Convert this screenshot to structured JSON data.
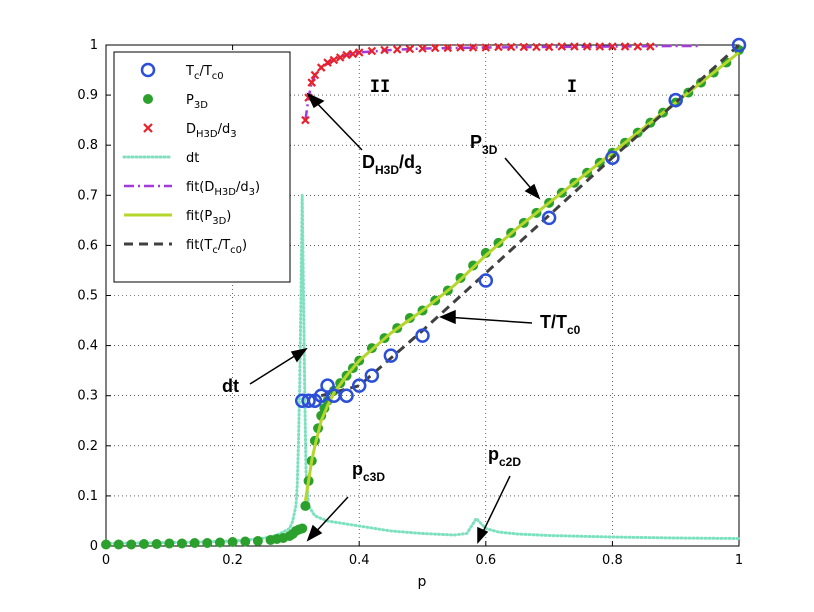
{
  "chart_data": {
    "type": "scatter",
    "xlabel": "p",
    "ylabel": "",
    "xlim": [
      0,
      1
    ],
    "ylim": [
      0,
      1
    ],
    "grid": true,
    "legend_position": "top-left",
    "x_ticks": [
      "0",
      "0.2",
      "0.4",
      "0.6",
      "0.8",
      "1"
    ],
    "y_ticks": [
      "0",
      "0.1",
      "0.2",
      "0.3",
      "0.4",
      "0.5",
      "0.6",
      "0.7",
      "0.8",
      "0.9",
      "1"
    ],
    "legend": [
      {
        "main": "T",
        "sub": "c",
        "main2": "/T",
        "sub2": "c0"
      },
      {
        "main": "P",
        "sub": "3D",
        "main2": "",
        "sub2": ""
      },
      {
        "main": "D",
        "sub": "H3D",
        "main2": "/d",
        "sub2": "3"
      },
      {
        "main": "dt",
        "sub": "",
        "main2": "",
        "sub2": ""
      },
      {
        "main": "fit(D",
        "sub": "H3D",
        "main2": "/d",
        "sub2": "3",
        "tail": ")"
      },
      {
        "main": "fit(P",
        "sub": "3D",
        "main2": ")",
        "sub2": ""
      },
      {
        "main": "fit(T",
        "sub": "c",
        "main2": "/T",
        "sub2": "c0",
        "tail": ")"
      }
    ],
    "annotations": {
      "region_II": "II",
      "region_I": "I",
      "dhd": {
        "main": "D",
        "sub": "H3D",
        "main2": "/d",
        "sub2": "3"
      },
      "p3d": {
        "main": "P",
        "sub": "3D"
      },
      "ttc": {
        "main": "T/T",
        "sub": "c0"
      },
      "dt": {
        "main": "dt"
      },
      "pc3d": {
        "main": "p",
        "sub": "c3D"
      },
      "pc2d": {
        "main": "p",
        "sub": "c2D"
      }
    },
    "colors": {
      "tc": "#2b4fd6",
      "p3d": "#2ca02c",
      "dhd": "#e8212b",
      "dt": "#7fe0c0",
      "fit_dhd": "#a23bd9",
      "fit_p3d": "#b5d62b",
      "fit_tc": "#404040"
    },
    "series": [
      {
        "name": "T_c/T_c0",
        "marker": "circle",
        "x": [
          0.31,
          0.32,
          0.33,
          0.34,
          0.35,
          0.36,
          0.38,
          0.4,
          0.42,
          0.45,
          0.5,
          0.6,
          0.7,
          0.8,
          0.9,
          1.0
        ],
        "y": [
          0.29,
          0.29,
          0.29,
          0.3,
          0.32,
          0.3,
          0.3,
          0.32,
          0.34,
          0.38,
          0.42,
          0.53,
          0.655,
          0.775,
          0.89,
          1.0
        ]
      },
      {
        "name": "P_3D",
        "marker": "dot",
        "x": [
          0.0,
          0.02,
          0.04,
          0.06,
          0.08,
          0.1,
          0.12,
          0.14,
          0.16,
          0.18,
          0.2,
          0.22,
          0.24,
          0.26,
          0.27,
          0.28,
          0.29,
          0.295,
          0.3,
          0.305,
          0.31,
          0.315,
          0.32,
          0.325,
          0.33,
          0.335,
          0.34,
          0.345,
          0.35,
          0.36,
          0.37,
          0.38,
          0.39,
          0.4,
          0.42,
          0.44,
          0.46,
          0.48,
          0.5,
          0.52,
          0.54,
          0.56,
          0.58,
          0.6,
          0.62,
          0.64,
          0.66,
          0.68,
          0.7,
          0.72,
          0.74,
          0.76,
          0.78,
          0.8,
          0.82,
          0.84,
          0.86,
          0.88,
          0.9,
          0.92,
          0.94,
          0.96,
          0.98,
          1.0
        ],
        "y": [
          0.003,
          0.003,
          0.003,
          0.004,
          0.004,
          0.005,
          0.005,
          0.006,
          0.006,
          0.007,
          0.008,
          0.009,
          0.01,
          0.012,
          0.014,
          0.016,
          0.02,
          0.024,
          0.03,
          0.033,
          0.035,
          0.08,
          0.13,
          0.17,
          0.21,
          0.235,
          0.26,
          0.275,
          0.29,
          0.31,
          0.325,
          0.34,
          0.355,
          0.37,
          0.395,
          0.415,
          0.435,
          0.455,
          0.47,
          0.49,
          0.51,
          0.535,
          0.56,
          0.585,
          0.605,
          0.625,
          0.645,
          0.665,
          0.685,
          0.705,
          0.725,
          0.745,
          0.765,
          0.785,
          0.805,
          0.825,
          0.845,
          0.865,
          0.885,
          0.905,
          0.925,
          0.945,
          0.965,
          0.99
        ]
      },
      {
        "name": "D_H3D/d_3",
        "marker": "cross",
        "x": [
          0.315,
          0.32,
          0.325,
          0.33,
          0.34,
          0.35,
          0.36,
          0.37,
          0.38,
          0.39,
          0.4,
          0.42,
          0.44,
          0.46,
          0.48,
          0.5,
          0.52,
          0.54,
          0.56,
          0.58,
          0.6,
          0.62,
          0.64,
          0.66,
          0.68,
          0.7,
          0.72,
          0.74,
          0.76,
          0.78,
          0.8,
          0.82,
          0.84,
          0.86
        ],
        "y": [
          0.85,
          0.895,
          0.925,
          0.94,
          0.955,
          0.965,
          0.97,
          0.975,
          0.98,
          0.982,
          0.985,
          0.988,
          0.99,
          0.991,
          0.992,
          0.993,
          0.994,
          0.994,
          0.995,
          0.995,
          0.995,
          0.996,
          0.996,
          0.996,
          0.996,
          0.996,
          0.997,
          0.997,
          0.997,
          0.997,
          0.997,
          0.997,
          0.997,
          0.997
        ]
      },
      {
        "name": "dt",
        "marker": "dotted-line",
        "x": [
          0.0,
          0.05,
          0.1,
          0.15,
          0.2,
          0.24,
          0.26,
          0.27,
          0.28,
          0.29,
          0.295,
          0.3,
          0.302,
          0.304,
          0.306,
          0.308,
          0.31,
          0.312,
          0.314,
          0.316,
          0.32,
          0.33,
          0.35,
          0.4,
          0.45,
          0.5,
          0.55,
          0.57,
          0.58,
          0.585,
          0.59,
          0.6,
          0.62,
          0.65,
          0.7,
          0.8,
          0.9,
          1.0
        ],
        "y": [
          0.005,
          0.006,
          0.007,
          0.008,
          0.01,
          0.014,
          0.018,
          0.022,
          0.028,
          0.035,
          0.05,
          0.08,
          0.12,
          0.2,
          0.32,
          0.5,
          0.7,
          0.5,
          0.3,
          0.15,
          0.08,
          0.06,
          0.05,
          0.04,
          0.03,
          0.025,
          0.022,
          0.025,
          0.045,
          0.055,
          0.048,
          0.035,
          0.028,
          0.024,
          0.021,
          0.018,
          0.016,
          0.015
        ]
      },
      {
        "name": "fit(D_H3D/d_3)",
        "marker": "dashdot",
        "x": [
          0.315,
          0.32,
          0.325,
          0.33,
          0.34,
          0.36,
          0.38,
          0.4,
          0.45,
          0.5,
          0.6,
          0.7,
          0.8,
          0.9,
          0.94
        ],
        "y": [
          0.85,
          0.895,
          0.925,
          0.94,
          0.955,
          0.97,
          0.98,
          0.985,
          0.99,
          0.993,
          0.995,
          0.996,
          0.997,
          0.998,
          0.998
        ]
      },
      {
        "name": "fit(P_3D)",
        "marker": "solid",
        "x": [
          0.315,
          0.32,
          0.325,
          0.33,
          0.34,
          0.35,
          0.36,
          0.38,
          0.4,
          0.45,
          0.5,
          0.55,
          0.6,
          0.65,
          0.7,
          0.75,
          0.8,
          0.85,
          0.9,
          0.95,
          1.0
        ],
        "y": [
          0.09,
          0.13,
          0.17,
          0.2,
          0.25,
          0.28,
          0.305,
          0.34,
          0.37,
          0.425,
          0.47,
          0.52,
          0.58,
          0.635,
          0.685,
          0.735,
          0.785,
          0.835,
          0.885,
          0.935,
          0.985
        ]
      },
      {
        "name": "fit(T_c/T_c0)",
        "marker": "dashed",
        "x": [
          0.34,
          0.4,
          0.5,
          0.6,
          0.7,
          0.8,
          0.9,
          1.0
        ],
        "y": [
          0.3,
          0.32,
          0.43,
          0.545,
          0.66,
          0.775,
          0.885,
          1.0
        ]
      }
    ]
  }
}
